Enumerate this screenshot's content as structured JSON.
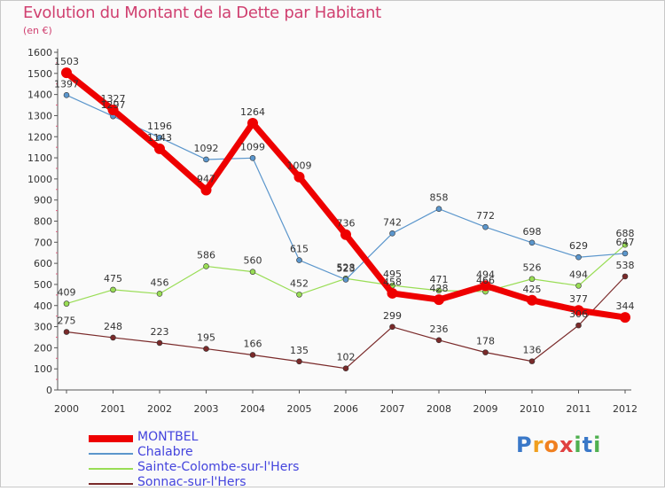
{
  "title": "Evolution du Montant de la Dette par Habitant",
  "subtitle": "(en €)",
  "logo": {
    "letters": [
      "P",
      "r",
      "o",
      "x",
      "i",
      "t",
      "i"
    ],
    "colors": [
      "#3a78c8",
      "#f0a020",
      "#f08020",
      "#e04040",
      "#50b050",
      "#3a78c8",
      "#50b050"
    ]
  },
  "chart_data": {
    "type": "line",
    "title": "Evolution du Montant de la Dette par Habitant",
    "ylabel": "(en €)",
    "x": [
      "2000",
      "2001",
      "2002",
      "2003",
      "2004",
      "2005",
      "2006",
      "2007",
      "2008",
      "2009",
      "2010",
      "2011",
      "2012"
    ],
    "ylim": [
      0,
      1600
    ],
    "yticks": [
      0,
      100,
      200,
      300,
      400,
      500,
      600,
      700,
      800,
      900,
      1000,
      1100,
      1200,
      1300,
      1400,
      1500,
      1600
    ],
    "grid": false,
    "legend": "bottom-left",
    "series": [
      {
        "name": "MONTBEL",
        "color": "#ee0000",
        "width": 7,
        "marker": 6,
        "values": [
          1503,
          1327,
          1143,
          947,
          1264,
          1009,
          736,
          458,
          428,
          494,
          425,
          377,
          344
        ],
        "labels": [
          "1503",
          "1327",
          "1143",
          "947",
          "1264",
          "1009",
          "736",
          "458",
          "428",
          "494",
          "425",
          "377",
          "344"
        ]
      },
      {
        "name": "Chalabre",
        "color": "#5b96cc",
        "width": 1.2,
        "marker": 3,
        "values": [
          1397,
          1297,
          1196,
          1092,
          1099,
          615,
          523,
          742,
          858,
          772,
          698,
          629,
          647
        ],
        "labels": [
          "1397",
          "1297",
          "1196",
          "1092",
          "1099",
          "615",
          "523",
          "742",
          "858",
          "772",
          "698",
          "629",
          "647"
        ]
      },
      {
        "name": "Sainte-Colombe-sur-l'Hers",
        "color": "#99dd55",
        "width": 1.2,
        "marker": 3,
        "values": [
          409,
          475,
          456,
          586,
          560,
          452,
          528,
          495,
          471,
          466,
          526,
          494,
          688
        ],
        "labels": [
          "409",
          "475",
          "456",
          "586",
          "560",
          "452",
          "528",
          "495",
          "471",
          "466",
          "526",
          "494",
          "688"
        ]
      },
      {
        "name": "Sonnac-sur-l'Hers",
        "color": "#7a2a2a",
        "width": 1.2,
        "marker": 3,
        "values": [
          275,
          248,
          223,
          195,
          166,
          135,
          102,
          299,
          236,
          178,
          136,
          306,
          538
        ],
        "labels": [
          "275",
          "248",
          "223",
          "195",
          "166",
          "135",
          "102",
          "299",
          "236",
          "178",
          "136",
          "306",
          "538"
        ]
      }
    ]
  }
}
